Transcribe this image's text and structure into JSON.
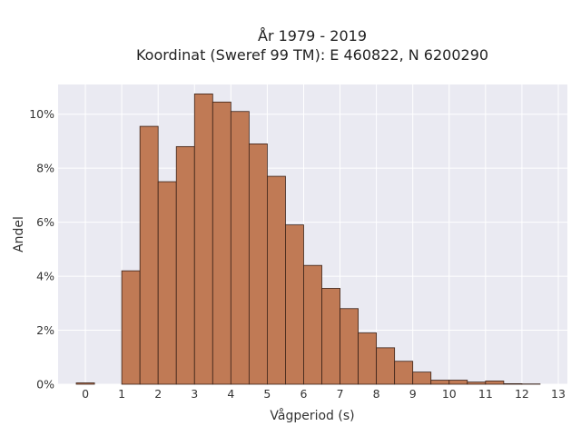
{
  "chart_data": {
    "type": "bar",
    "title_line1": "År 1979 - 2019",
    "title_line2": "Koordinat (Sweref 99 TM): E 460822, N 6200290",
    "xlabel": "Vågperiod (s)",
    "ylabel": "Andel",
    "xlim": [
      -0.75,
      13.25
    ],
    "ylim": [
      0,
      11.1
    ],
    "x_ticks": [
      0,
      1,
      2,
      3,
      4,
      5,
      6,
      7,
      8,
      9,
      10,
      11,
      12,
      13
    ],
    "y_ticks": [
      0,
      2,
      4,
      6,
      8,
      10
    ],
    "y_tick_suffix": "%",
    "bin_width": 0.5,
    "bins": [
      {
        "start": -0.25,
        "value": 0.05
      },
      {
        "start": 0.25,
        "value": 0.0
      },
      {
        "start": 1.0,
        "value": 4.2
      },
      {
        "start": 1.5,
        "value": 9.55
      },
      {
        "start": 2.0,
        "value": 7.5
      },
      {
        "start": 2.5,
        "value": 8.8
      },
      {
        "start": 3.0,
        "value": 10.75
      },
      {
        "start": 3.5,
        "value": 10.45
      },
      {
        "start": 4.0,
        "value": 10.1
      },
      {
        "start": 4.5,
        "value": 8.9
      },
      {
        "start": 5.0,
        "value": 7.7
      },
      {
        "start": 5.5,
        "value": 5.9
      },
      {
        "start": 6.0,
        "value": 4.4
      },
      {
        "start": 6.5,
        "value": 3.55
      },
      {
        "start": 7.0,
        "value": 2.8
      },
      {
        "start": 7.5,
        "value": 1.9
      },
      {
        "start": 8.0,
        "value": 1.35
      },
      {
        "start": 8.5,
        "value": 0.85
      },
      {
        "start": 9.0,
        "value": 0.45
      },
      {
        "start": 9.5,
        "value": 0.15
      },
      {
        "start": 10.0,
        "value": 0.15
      },
      {
        "start": 10.5,
        "value": 0.08
      },
      {
        "start": 11.0,
        "value": 0.12
      },
      {
        "start": 11.5,
        "value": 0.02
      },
      {
        "start": 12.0,
        "value": 0.01
      }
    ],
    "bar_color": "#c07a55",
    "bar_edge_color": "#3a2218",
    "plot_background": "#eaeaf2",
    "grid": true,
    "grid_color": "#ffffff"
  }
}
